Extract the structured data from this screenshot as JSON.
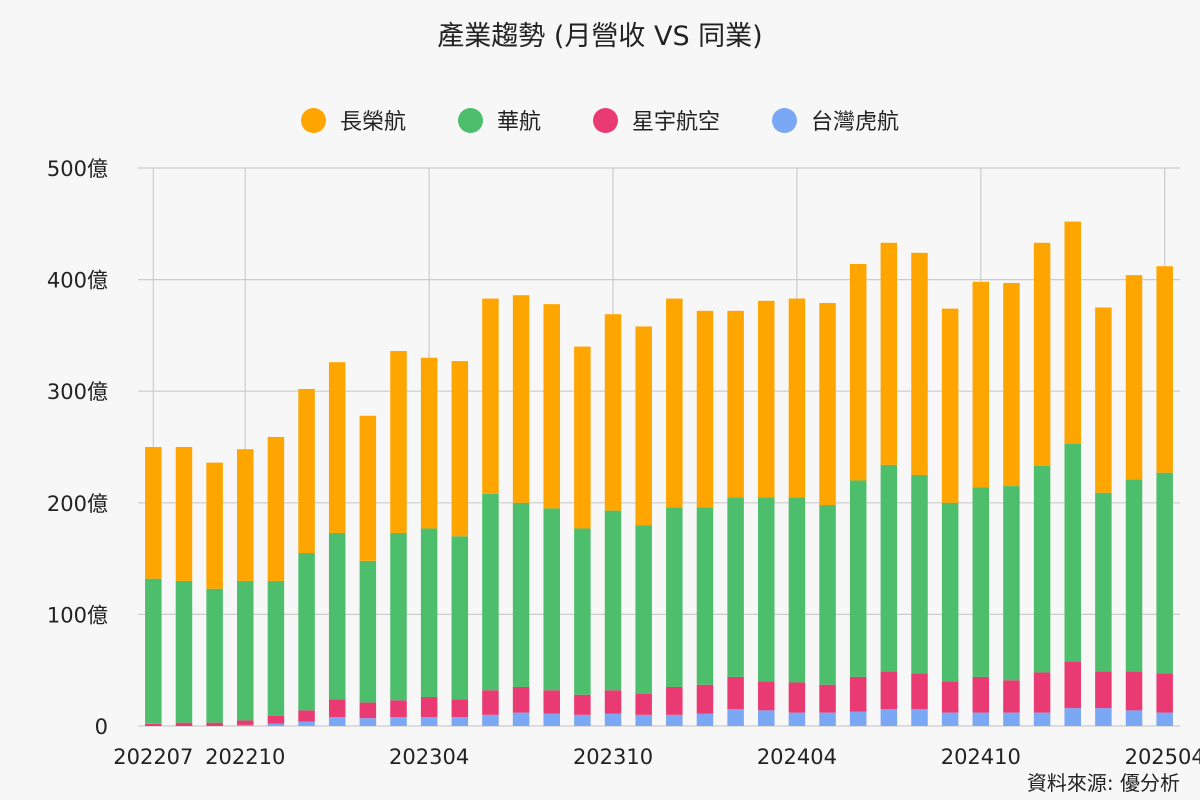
{
  "title": "產業趨勢 (月營收 VS 同業)",
  "source": "資料來源: 優分析",
  "colors": {
    "長榮航": "#ffa500",
    "華航": "#4dbe6c",
    "星宇航空": "#ea3a73",
    "台灣虎航": "#7aa8f5",
    "grid": "#cccccc",
    "background": "#f7f7f7"
  },
  "chart_data": {
    "type": "bar",
    "stacked": true,
    "title": "產業趨勢 (月營收 VS 同業)",
    "xlabel": "",
    "ylabel": "",
    "y_unit": "億",
    "ylim": [
      0,
      500
    ],
    "y_ticks": [
      "0",
      "100億",
      "200億",
      "300億",
      "400億",
      "500億"
    ],
    "x_tick_labels": [
      "202207",
      "202210",
      "202304",
      "202310",
      "202404",
      "202410",
      "202504"
    ],
    "grid": true,
    "legend_position": "top",
    "categories": [
      "202207",
      "202208",
      "202209",
      "202210",
      "202211",
      "202212",
      "202301",
      "202302",
      "202303",
      "202304",
      "202305",
      "202306",
      "202307",
      "202308",
      "202309",
      "202310",
      "202311",
      "202312",
      "202401",
      "202402",
      "202403",
      "202404",
      "202405",
      "202406",
      "202407",
      "202408",
      "202409",
      "202410",
      "202411",
      "202412",
      "202501",
      "202502",
      "202503",
      "202504"
    ],
    "series": [
      {
        "name": "台灣虎航",
        "values": [
          0,
          0,
          0,
          1,
          2,
          4,
          8,
          7,
          8,
          8,
          8,
          10,
          12,
          11,
          10,
          11,
          10,
          10,
          11,
          15,
          14,
          12,
          12,
          13,
          15,
          15,
          12,
          12,
          12,
          12,
          16,
          16,
          14,
          12
        ]
      },
      {
        "name": "星宇航空",
        "values": [
          2,
          3,
          3,
          4,
          7,
          10,
          16,
          14,
          15,
          18,
          16,
          22,
          23,
          21,
          18,
          21,
          19,
          25,
          26,
          29,
          26,
          27,
          25,
          31,
          34,
          32,
          28,
          32,
          29,
          36,
          42,
          33,
          35,
          35
        ]
      },
      {
        "name": "華航",
        "values": [
          130,
          127,
          120,
          125,
          121,
          141,
          149,
          127,
          150,
          151,
          146,
          176,
          165,
          163,
          149,
          161,
          151,
          161,
          159,
          161,
          165,
          166,
          161,
          176,
          185,
          178,
          160,
          170,
          174,
          185,
          195,
          160,
          172,
          180
        ]
      },
      {
        "name": "長榮航",
        "values": [
          118,
          120,
          113,
          118,
          129,
          147,
          153,
          130,
          163,
          153,
          157,
          175,
          186,
          183,
          163,
          176,
          178,
          187,
          176,
          167,
          176,
          178,
          181,
          194,
          199,
          199,
          174,
          184,
          182,
          200,
          199,
          166,
          183,
          185
        ]
      }
    ]
  }
}
